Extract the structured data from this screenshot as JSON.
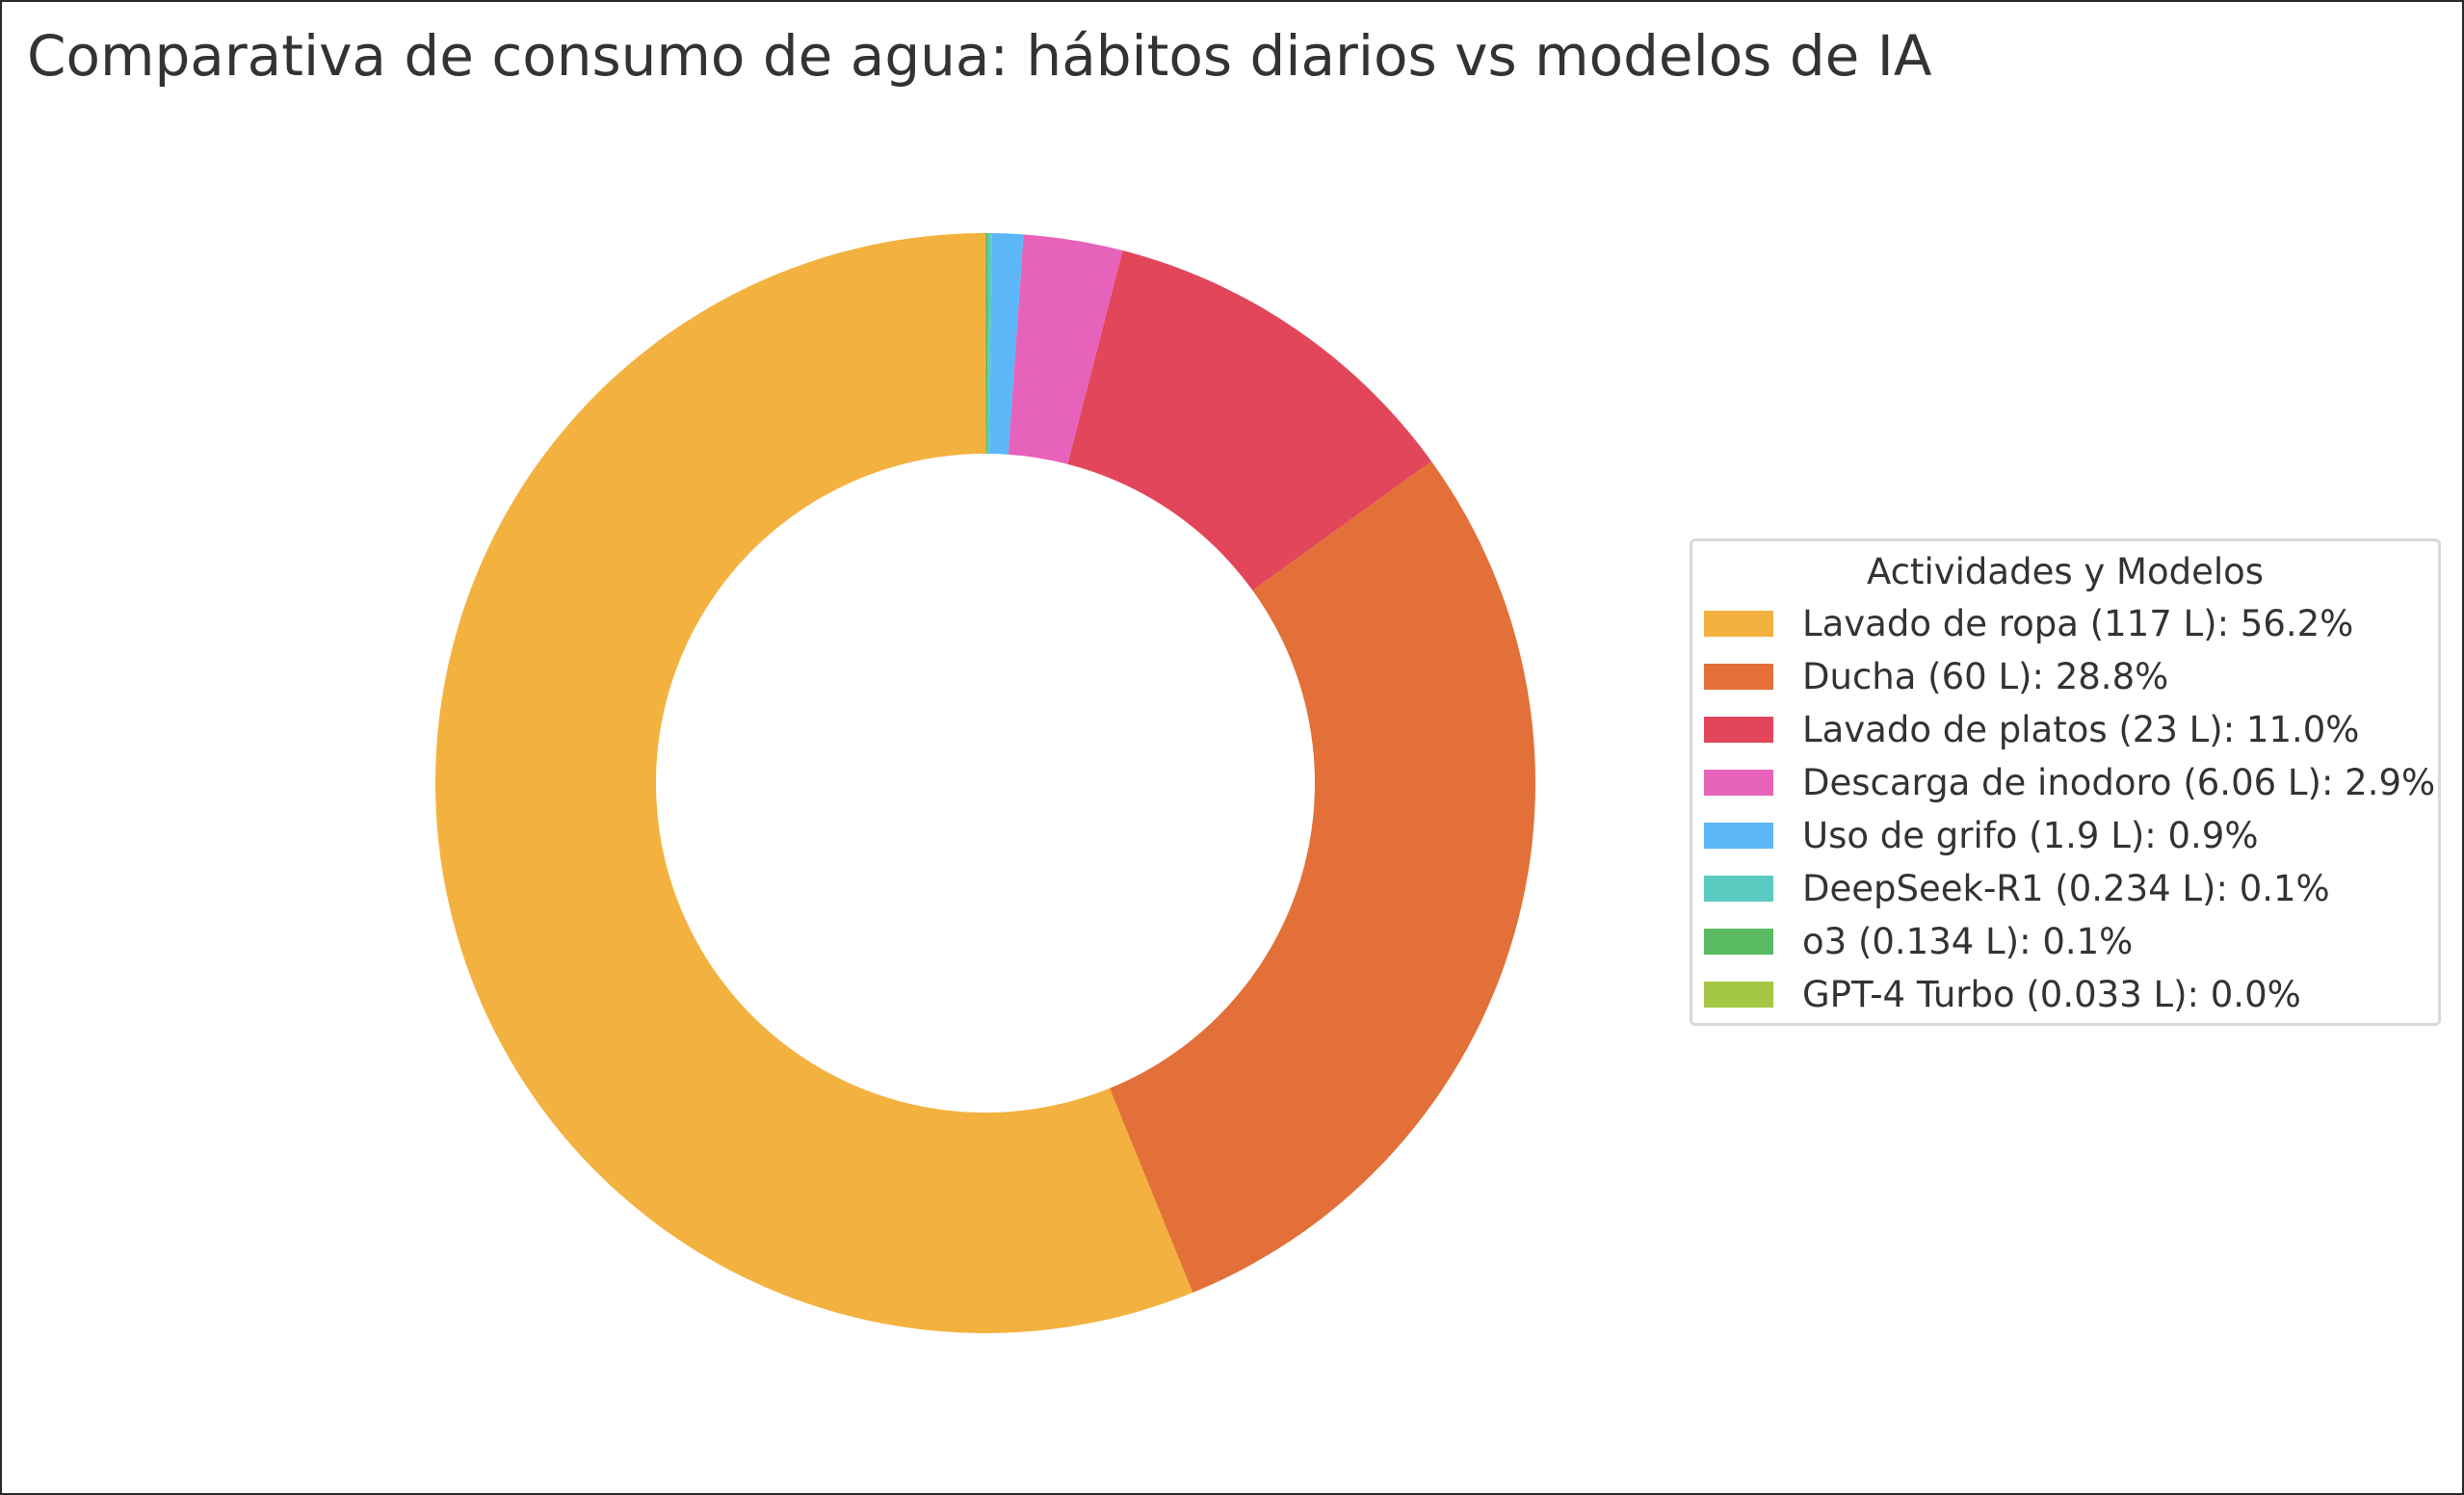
{
  "chart_data": {
    "type": "pie",
    "style": "donut",
    "title": "Comparativa de consumo de agua: hábitos diarios vs modelos de IA",
    "legend_title": "Actividades y Modelos",
    "legend_placement": "right",
    "unit": "L",
    "start_angle_deg": 90,
    "direction": "counterclockwise",
    "slices": [
      {
        "label": "Lavado de ropa (117 L): 56.2%",
        "name": "Lavado de ropa",
        "value": 117,
        "percent": 56.2,
        "color": "#f3b23f"
      },
      {
        "label": "Ducha (60 L): 28.8%",
        "name": "Ducha",
        "value": 60,
        "percent": 28.8,
        "color": "#e37038"
      },
      {
        "label": "Lavado de platos (23 L): 11.0%",
        "name": "Lavado de platos",
        "value": 23,
        "percent": 11.0,
        "color": "#e2465a"
      },
      {
        "label": "Descarga de inodoro (6.06 L): 2.9%",
        "name": "Descarga de inodoro",
        "value": 6.06,
        "percent": 2.9,
        "color": "#e763bb"
      },
      {
        "label": "Uso de grifo (1.9 L): 0.9%",
        "name": "Uso de grifo",
        "value": 1.9,
        "percent": 0.9,
        "color": "#5bb7f7"
      },
      {
        "label": "DeepSeek-R1 (0.234 L): 0.1%",
        "name": "DeepSeek-R1",
        "value": 0.234,
        "percent": 0.1,
        "color": "#5bcbc1"
      },
      {
        "label": "o3 (0.134 L): 0.1%",
        "name": "o3",
        "value": 0.134,
        "percent": 0.1,
        "color": "#5aba62"
      },
      {
        "label": "GPT-4 Turbo (0.033 L): 0.0%",
        "name": "GPT-4 Turbo",
        "value": 0.033,
        "percent": 0.0,
        "color": "#a5c844"
      }
    ]
  }
}
